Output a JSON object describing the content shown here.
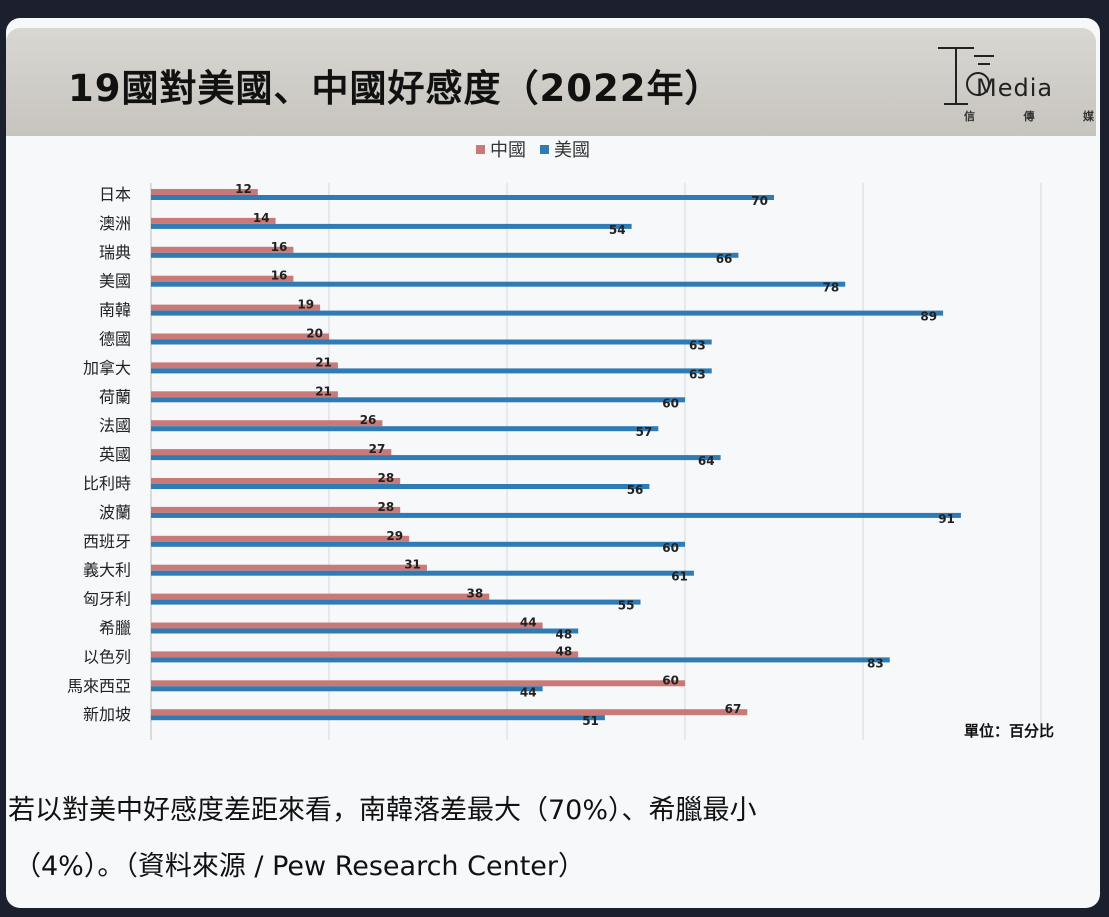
{
  "title": "19國對美國、中國好感度（2022年）",
  "logo": {
    "word": "Media",
    "sub": [
      "信",
      "傳",
      "媒"
    ]
  },
  "unit_label": "單位：百分比",
  "caption": {
    "line1": "若以對美中好感度差距來看，南韓落差最大（70%）、希臘最小",
    "line2": "（4%）。（資料來源 / Pew Research Center）"
  },
  "colors": {
    "china": "#c97a78",
    "usa": "#2f7bb5",
    "grid": "#d6d8dc"
  },
  "chart_data": {
    "type": "bar",
    "orientation": "horizontal",
    "title": "19國對美國、中國好感度（2022年）",
    "categories": [
      "日本",
      "澳洲",
      "瑞典",
      "美國",
      "南韓",
      "德國",
      "加拿大",
      "荷蘭",
      "法國",
      "英國",
      "比利時",
      "波蘭",
      "西班牙",
      "義大利",
      "匈牙利",
      "希臘",
      "以色列",
      "馬來西亞",
      "新加坡"
    ],
    "series": [
      {
        "name": "中國",
        "values": [
          12,
          14,
          16,
          16,
          19,
          20,
          21,
          21,
          26,
          27,
          28,
          28,
          29,
          31,
          38,
          44,
          48,
          60,
          67
        ]
      },
      {
        "name": "美國",
        "values": [
          70,
          54,
          66,
          78,
          89,
          63,
          63,
          60,
          57,
          64,
          56,
          91,
          60,
          61,
          55,
          48,
          83,
          44,
          51
        ]
      }
    ],
    "xlim": [
      0,
      100
    ],
    "grid": true,
    "legend": "top-center"
  }
}
